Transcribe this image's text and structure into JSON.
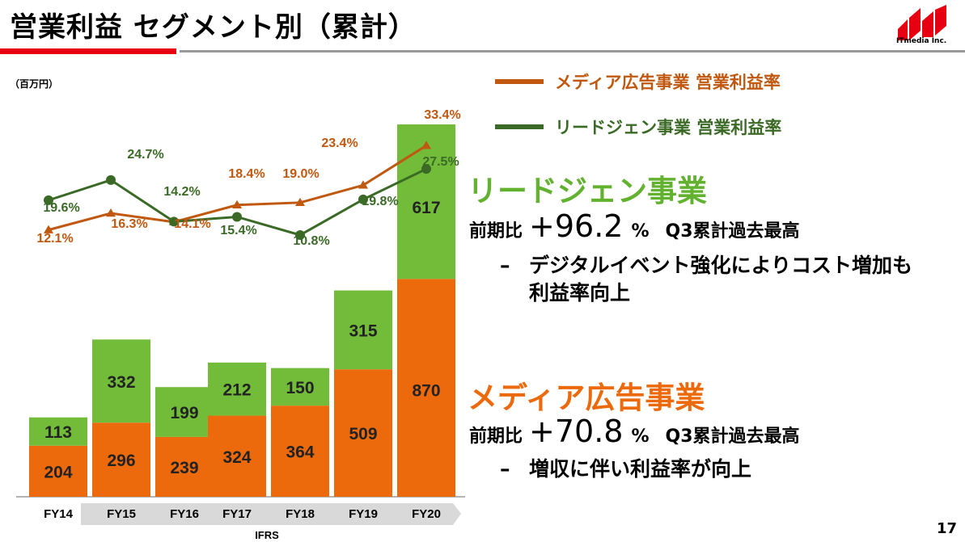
{
  "header": {
    "title": "営業利益 セグメント別（累計）",
    "logo_text": "ITmedia Inc."
  },
  "unit_label": "（百万円）",
  "ifrs_label": "IFRS",
  "page_number": "17",
  "colors": {
    "media_bar": "#ed6a0c",
    "leadgen_bar": "#72bc3a",
    "media_line": "#c0580f",
    "leadgen_line": "#3a6a26",
    "leadgen_title": "#62b22f",
    "media_title": "#ed6a0c",
    "axis_band": "#d9d9d9"
  },
  "legend": [
    {
      "label": "メディア広告事業 営業利益率",
      "color": "#c0580f"
    },
    {
      "label": "リードジェン事業 営業利益率",
      "color": "#3a6a26"
    }
  ],
  "segments": {
    "leadgen": {
      "title": "リードジェン事業",
      "prefix": "前期比",
      "growth": "+96.2",
      "unit": "%",
      "suffix": "Q3累計過去最高",
      "dash": "–",
      "note_line1": "デジタルイベント強化によりコスト増加も",
      "note_line2": "利益率向上"
    },
    "media": {
      "title": "メディア広告事業",
      "prefix": "前期比",
      "growth": "+70.8",
      "unit": "%",
      "suffix": "Q3累計過去最高",
      "dash": "–",
      "note_line1": "増収に伴い利益率が向上"
    }
  },
  "chart_data": {
    "type": "bar",
    "stacked": true,
    "categories": [
      "FY14",
      "FY15",
      "FY16",
      "FY17",
      "FY18",
      "FY19",
      "FY20"
    ],
    "series": [
      {
        "name": "メディア広告事業",
        "values": [
          204,
          296,
          239,
          324,
          364,
          509,
          870
        ]
      },
      {
        "name": "リードジェン事業",
        "values": [
          113,
          332,
          199,
          212,
          150,
          315,
          617
        ]
      }
    ],
    "lines": [
      {
        "name": "メディア広告事業 営業利益率",
        "values": [
          12.1,
          16.3,
          14.1,
          18.4,
          19.0,
          23.4,
          33.4
        ],
        "labels": [
          "12.1%",
          "16.3%",
          "14.1%",
          "18.4%",
          "19.0%",
          "23.4%",
          "33.4%"
        ]
      },
      {
        "name": "リードジェン事業 営業利益率",
        "values": [
          19.6,
          24.7,
          14.2,
          15.4,
          10.8,
          19.8,
          27.5
        ],
        "labels": [
          "19.6%",
          "24.7%",
          "14.2%",
          "15.4%",
          "10.8%",
          "19.8%",
          "27.5%"
        ]
      }
    ]
  }
}
